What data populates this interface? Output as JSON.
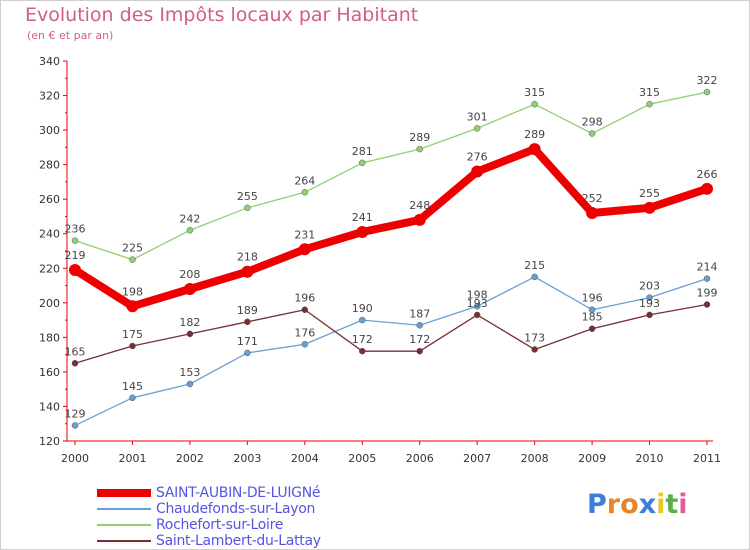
{
  "title": "Evolution des Impôts locaux par Habitant",
  "subtitle": "(en € et par an)",
  "logo": {
    "text": "Proxiti",
    "letters": [
      "P",
      "r",
      "o",
      "x",
      "i",
      "t",
      "i"
    ],
    "colors": [
      "#3b7fd9",
      "#e8852b",
      "#e8852b",
      "#3b7fd9",
      "#e8c82b",
      "#5bb04a",
      "#e85b9a"
    ]
  },
  "chart_data": {
    "type": "line",
    "x": [
      "2000",
      "2001",
      "2002",
      "2003",
      "2004",
      "2005",
      "2006",
      "2007",
      "2008",
      "2009",
      "2010",
      "2011"
    ],
    "ylim": [
      120,
      340
    ],
    "yticks": [
      "120",
      "140",
      "160",
      "180",
      "200",
      "220",
      "240",
      "260",
      "280",
      "300",
      "320",
      "340"
    ],
    "grid": false,
    "legend_position": "bottom-left",
    "series": [
      {
        "name": "SAINT-AUBIN-DE-LUIGNé",
        "color": "#ee0000",
        "values": [
          219,
          198,
          208,
          218,
          231,
          241,
          248,
          276,
          289,
          252,
          255,
          266
        ],
        "labels": [
          "219",
          "198",
          "208",
          "218",
          "231",
          "241",
          "248",
          "276",
          "289",
          "252",
          "255",
          "266"
        ]
      },
      {
        "name": "Chaudefonds-sur-Layon",
        "color": "#6a9fd4",
        "values": [
          129,
          145,
          153,
          171,
          176,
          190,
          187,
          198,
          215,
          196,
          203,
          214
        ],
        "labels": [
          "129",
          "145",
          "153",
          "171",
          "176",
          "190",
          "187",
          "198",
          "215",
          "196",
          "203",
          "214"
        ]
      },
      {
        "name": "Rochefort-sur-Loire",
        "color": "#8fd16e",
        "values": [
          236,
          225,
          242,
          255,
          264,
          281,
          289,
          301,
          315,
          298,
          315,
          322
        ],
        "labels": [
          "236",
          "225",
          "242",
          "255",
          "264",
          "281",
          "289",
          "301",
          "315",
          "298",
          "315",
          "322"
        ]
      },
      {
        "name": "Saint-Lambert-du-Lattay",
        "color": "#7a2e34",
        "values": [
          165,
          175,
          182,
          189,
          196,
          172,
          172,
          193,
          173,
          185,
          193,
          199
        ],
        "labels": [
          "165",
          "175",
          "182",
          "189",
          "196",
          "172",
          "172",
          "193",
          "173",
          "185",
          "193",
          "199"
        ]
      }
    ]
  }
}
